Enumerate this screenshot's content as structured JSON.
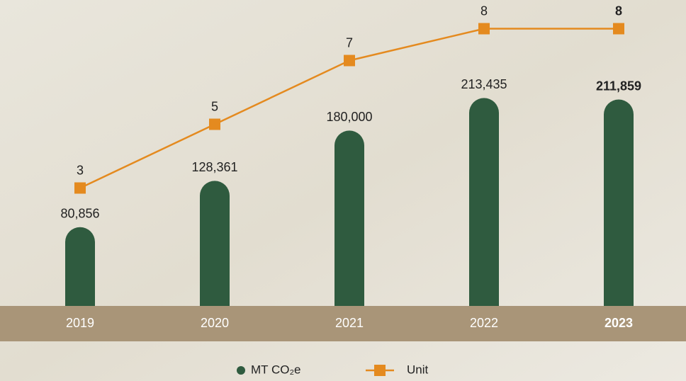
{
  "chart_data": {
    "type": "bar-line",
    "categories": [
      "2019",
      "2020",
      "2021",
      "2022",
      "2023"
    ],
    "series": [
      {
        "name": "MT CO₂e",
        "type": "bar",
        "color": "#2f5b3f",
        "values": [
          80856,
          128361,
          180000,
          213435,
          211859
        ],
        "value_labels": [
          "80,856",
          "128,361",
          "180,000",
          "213,435",
          "211,859"
        ]
      },
      {
        "name": "Unit",
        "type": "line",
        "axis": "y2",
        "color": "#e48a1f",
        "values": [
          3,
          5,
          7,
          8,
          8
        ]
      }
    ],
    "ylim": [
      0,
      314000
    ],
    "y2lim": [
      -0.7,
      8.9
    ]
  }
}
